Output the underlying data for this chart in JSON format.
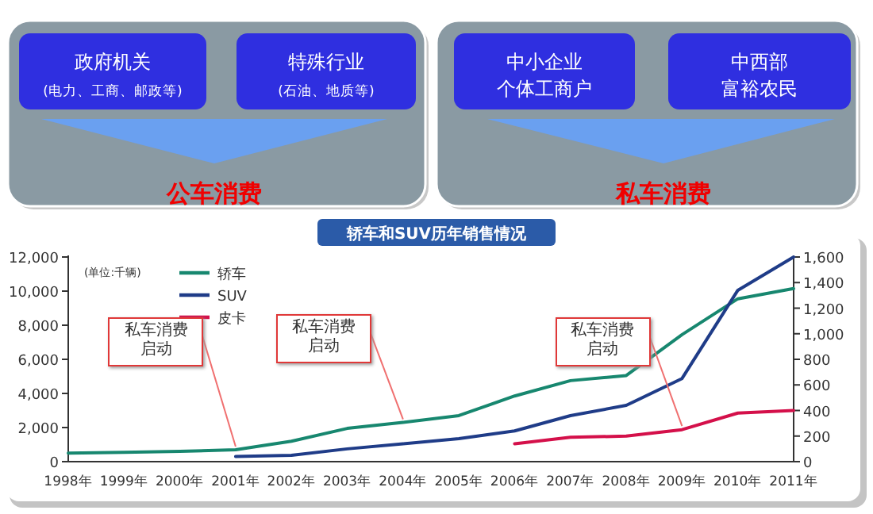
{
  "chart_data": {
    "type": "line",
    "title": "轿车和SUV历年销售情况",
    "categories": [
      "1998年",
      "1999年",
      "2000年",
      "2001年",
      "2002年",
      "2003年",
      "2004年",
      "2005年",
      "2006年",
      "2007年",
      "2008年",
      "2009年",
      "2010年",
      "2011年"
    ],
    "series": [
      {
        "name": "轿车",
        "color": "#17876f",
        "values": [
          500,
          550,
          600,
          700,
          1200,
          1950,
          2300,
          2700,
          3850,
          4750,
          5050,
          7450,
          9550,
          10150
        ]
      },
      {
        "name": "SUV",
        "color": "#1f3c88",
        "axis": "y2",
        "values": [
          null,
          null,
          null,
          40,
          50,
          100,
          140,
          180,
          240,
          360,
          440,
          650,
          1340,
          1600
        ]
      },
      {
        "name": "皮卡",
        "color": "#d4104a",
        "axis": "y2",
        "values": [
          null,
          null,
          null,
          null,
          null,
          null,
          null,
          null,
          140,
          190,
          200,
          250,
          380,
          400
        ]
      }
    ],
    "ylim": [
      0,
      12000
    ],
    "yticks": [
      0,
      {
        "value": 2000,
        "label": "2,000"
      },
      {
        "value": 4000,
        "label": "4,000"
      },
      {
        "value": 6000,
        "label": "6,000"
      },
      {
        "value": 8000,
        "label": "8,000"
      },
      {
        "value": 10000,
        "label": "10,000"
      },
      {
        "value": 12000,
        "label": "12,000"
      }
    ],
    "y2lim": [
      0,
      1600
    ],
    "y2ticks": [
      0,
      200,
      400,
      600,
      800,
      {
        "value": 1000,
        "label": "1,000"
      },
      {
        "value": 1200,
        "label": "1,200"
      },
      {
        "value": 1400,
        "label": "1,400"
      },
      {
        "value": 1600,
        "label": "1,600"
      }
    ],
    "legend": "top left",
    "grid": false,
    "marker": "none",
    "annotations": [
      "(单位:千辆)",
      "政府机关",
      "(电力、工商、邮政等)",
      "特殊行业",
      "(石油、地质等)",
      "中小企业",
      "个体工商户",
      "中西部",
      "富裕农民",
      "公车消费",
      "私车消费",
      {
        "text": "私车消费启动",
        "x": "2001年",
        "y": 700
      },
      {
        "text": "私车消费启动",
        "x": "2004年",
        "y": 2300
      },
      {
        "text": "私车消费启动",
        "x": "2009年",
        "y": 1900
      }
    ]
  }
}
